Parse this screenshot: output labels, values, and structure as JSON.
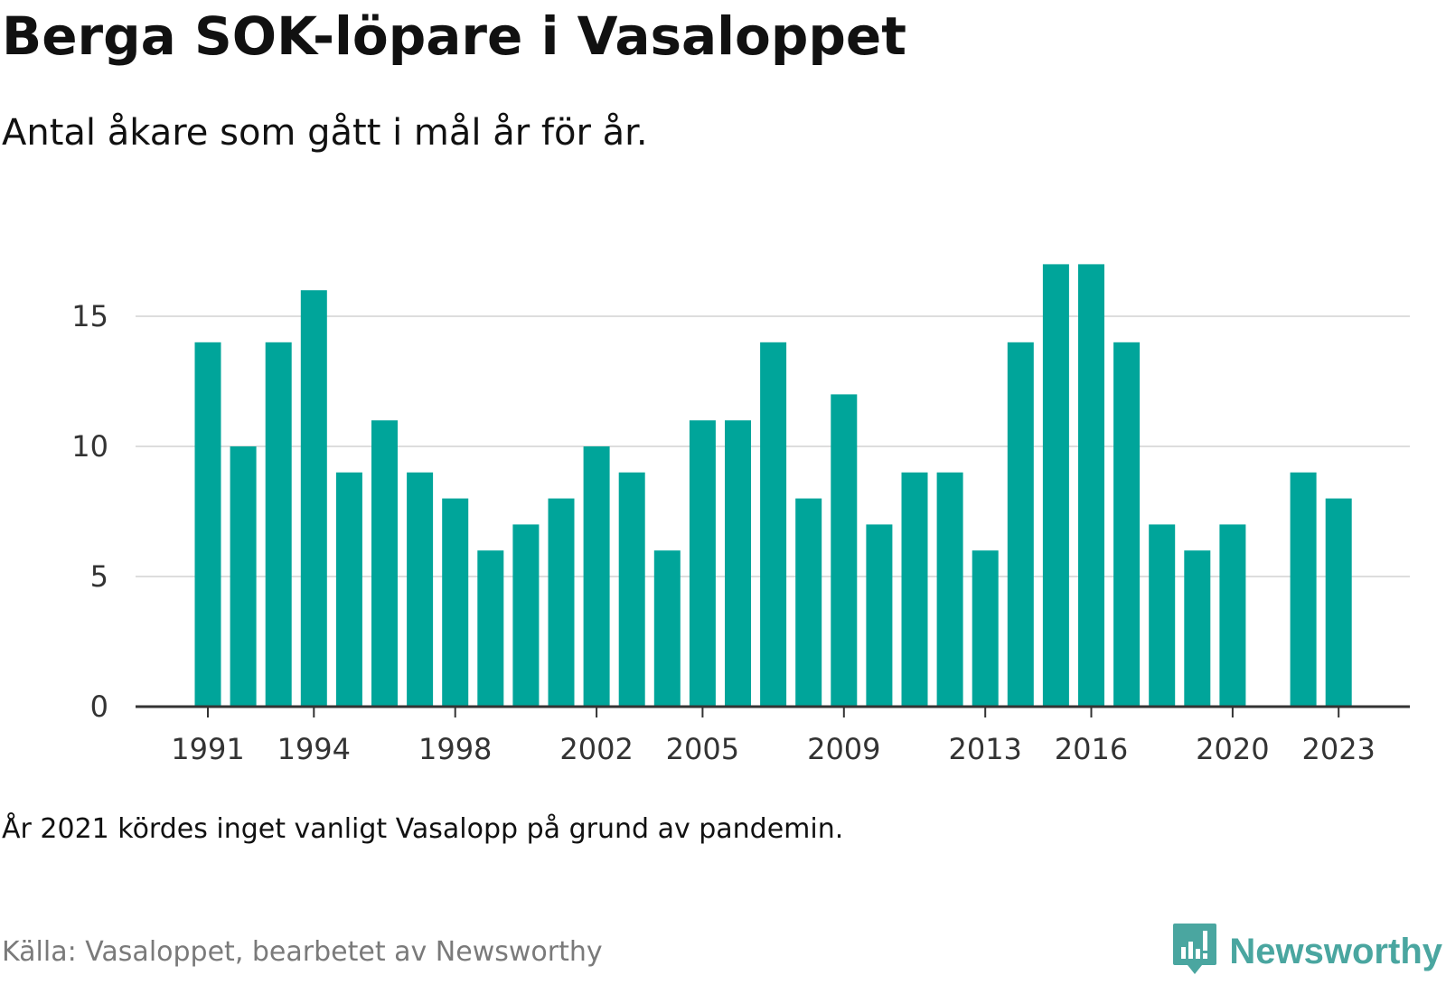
{
  "header": {
    "title": "Berga SOK-löpare i Vasaloppet",
    "subtitle": "Antal åkare som gått i mål år för år."
  },
  "footer": {
    "note": "År 2021 kördes inget vanligt Vasalopp på grund av pandemin.",
    "source": "Källa: Vasaloppet, bearbetet av Newsworthy",
    "brand": "Newsworthy",
    "brand_icon": "newsworthy-logo-icon"
  },
  "colors": {
    "bar": "#00a59a",
    "grid": "#dddddd",
    "axis": "#333333",
    "brand": "#4aa6a0"
  },
  "chart_data": {
    "type": "bar",
    "title": "Berga SOK-löpare i Vasaloppet",
    "subtitle": "Antal åkare som gått i mål år för år.",
    "xlabel": "",
    "ylabel": "",
    "ylim": [
      0,
      17
    ],
    "yticks": [
      0,
      5,
      10,
      15
    ],
    "xticks": [
      "1991",
      "1994",
      "1998",
      "2002",
      "2005",
      "2009",
      "2013",
      "2016",
      "2020",
      "2023"
    ],
    "grid": true,
    "legend": "none",
    "categories": [
      "1991",
      "1992",
      "1993",
      "1994",
      "1995",
      "1996",
      "1997",
      "1998",
      "1999",
      "2000",
      "2001",
      "2002",
      "2003",
      "2004",
      "2005",
      "2006",
      "2007",
      "2008",
      "2009",
      "2010",
      "2011",
      "2012",
      "2013",
      "2014",
      "2015",
      "2016",
      "2017",
      "2018",
      "2019",
      "2020",
      "2021",
      "2022",
      "2023"
    ],
    "values": [
      14,
      10,
      14,
      16,
      9,
      11,
      9,
      8,
      6,
      7,
      8,
      10,
      9,
      6,
      11,
      11,
      14,
      8,
      12,
      7,
      9,
      9,
      6,
      14,
      17,
      17,
      14,
      7,
      6,
      7,
      null,
      9,
      8
    ]
  }
}
